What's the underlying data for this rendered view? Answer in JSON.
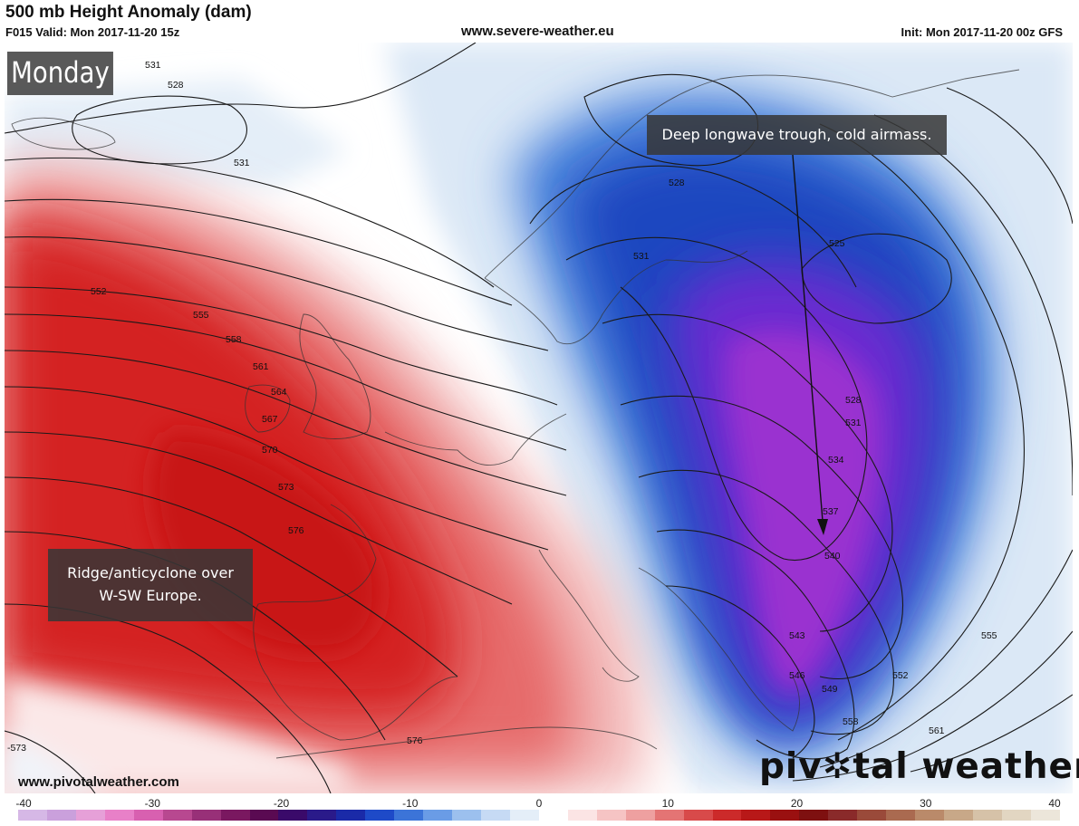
{
  "header": {
    "title": "500 mb Height Anomaly (dam)",
    "valid": "F015 Valid: Mon 2017-11-20 15z",
    "site": "www.severe-weather.eu",
    "init": "Init: Mon 2017-11-20 00z GFS"
  },
  "day_label": "Monday",
  "annotations": {
    "trough": "Deep longwave trough, cold airmass.",
    "ridge_line1": "Ridge/anticyclone over",
    "ridge_line2": "W-SW Europe."
  },
  "footer": {
    "url": "www.pivotalweather.com",
    "logo_left": "piv",
    "logo_right": "tal weather"
  },
  "contour_labels": [
    {
      "id": "c531-a",
      "text": "531"
    },
    {
      "id": "c528-a",
      "text": "528"
    },
    {
      "id": "c531-b",
      "text": "531"
    },
    {
      "id": "c552-a",
      "text": "552"
    },
    {
      "id": "c555-a",
      "text": "555"
    },
    {
      "id": "c558-a",
      "text": "558"
    },
    {
      "id": "c561-a",
      "text": "561"
    },
    {
      "id": "c564-a",
      "text": "564"
    },
    {
      "id": "c567-a",
      "text": "567"
    },
    {
      "id": "c570-a",
      "text": "570"
    },
    {
      "id": "c573-a",
      "text": "573"
    },
    {
      "id": "c576-a",
      "text": "576"
    },
    {
      "id": "c576-b",
      "text": "576"
    },
    {
      "id": "c573-b",
      "text": "-573"
    },
    {
      "id": "c528-b",
      "text": "528"
    },
    {
      "id": "c531-c",
      "text": "531"
    },
    {
      "id": "c525-a",
      "text": "525"
    },
    {
      "id": "c528-c",
      "text": "528"
    },
    {
      "id": "c531-d",
      "text": "531"
    },
    {
      "id": "c534-a",
      "text": "534"
    },
    {
      "id": "c537-a",
      "text": "537"
    },
    {
      "id": "c540-a",
      "text": "540"
    },
    {
      "id": "c543-a",
      "text": "543"
    },
    {
      "id": "c546-a",
      "text": "546"
    },
    {
      "id": "c549-a",
      "text": "549"
    },
    {
      "id": "c552-b",
      "text": "552"
    },
    {
      "id": "c555-b",
      "text": "555"
    },
    {
      "id": "c558-b",
      "text": "558"
    },
    {
      "id": "c561-b",
      "text": "561"
    }
  ],
  "legend": {
    "ticks": [
      "-40",
      "-30",
      "-20",
      "-10",
      "0",
      "10",
      "20",
      "30",
      "40"
    ],
    "min": -40,
    "max": 40,
    "colors": [
      "#d6b8e6",
      "#caa0dc",
      "#e6a0d8",
      "#e880c8",
      "#d860b0",
      "#b84890",
      "#983078",
      "#7a1860",
      "#5a0a52",
      "#3a0a6a",
      "#2a1a8a",
      "#1a2aa8",
      "#1e4ac8",
      "#3c74d8",
      "#6a9ce6",
      "#9cc0ee",
      "#c6daf4",
      "#e4eef8",
      "#ffffff",
      "#fbe4e4",
      "#f6c4c4",
      "#eea0a0",
      "#e47474",
      "#d84a4a",
      "#cc2a2a",
      "#b81818",
      "#9a1010",
      "#7e1010",
      "#8a2a2a",
      "#9a4a3a",
      "#aa6a50",
      "#ba8a6a",
      "#c8a888",
      "#d6c2a8",
      "#e2d6c2",
      "#ece6da"
    ]
  },
  "colors": {
    "ridge": "#d42020",
    "trough": "#1e4ac8",
    "core": "#8a22c8"
  }
}
